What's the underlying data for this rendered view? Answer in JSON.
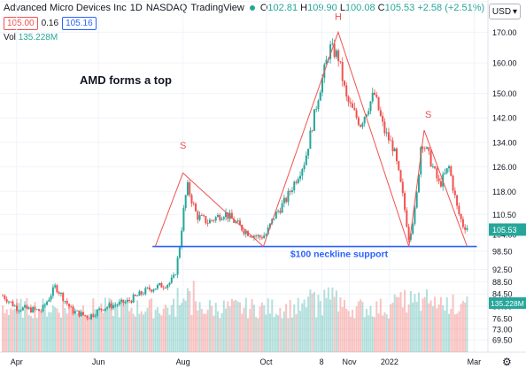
{
  "header": {
    "title": "Advanced Micro Devices Inc",
    "interval": "1D",
    "exchange": "NASDAQ",
    "source": "TradingView",
    "open_label": "O",
    "open": "102.81",
    "high_label": "H",
    "high": "109.90",
    "low_label": "L",
    "low": "100.08",
    "close_label": "C",
    "close": "105.53",
    "change": "+2.58 (+2.51%)",
    "bid": "105.00",
    "spread": "0.16",
    "ask": "105.16",
    "vol_label": "Vol",
    "vol": "135.228M",
    "currency": "USD"
  },
  "colors": {
    "up": "#26a69a",
    "down": "#ef5350",
    "annotation": "#ef5350",
    "neckline": "#2962ff"
  },
  "chart_data": {
    "type": "candlestick",
    "title": "AMD forms a top",
    "ylim": [
      65.5,
      180.5
    ],
    "y_ticks": [
      69.5,
      73.0,
      76.5,
      80.5,
      84.5,
      88.5,
      92.5,
      98.5,
      104.0,
      110.5,
      118.0,
      126.0,
      134.0,
      142.0,
      150.0,
      160.0,
      170.0,
      180.0
    ],
    "x_ticks": [
      {
        "label": "Apr",
        "day": 0
      },
      {
        "label": "Jun",
        "day": 59
      },
      {
        "label": "Aug",
        "day": 120
      },
      {
        "label": "Oct",
        "day": 180
      },
      {
        "label": "8",
        "day": 220
      },
      {
        "label": "Nov",
        "day": 240
      },
      {
        "label": "2022",
        "day": 269
      },
      {
        "label": "Mar",
        "day": 330
      }
    ],
    "last_price": "105.53",
    "last_volume": "135.228M",
    "path": [
      [
        -10,
        84
      ],
      [
        0,
        80
      ],
      [
        18,
        79
      ],
      [
        28,
        87
      ],
      [
        40,
        79
      ],
      [
        52,
        77
      ],
      [
        62,
        80
      ],
      [
        80,
        82
      ],
      [
        95,
        86
      ],
      [
        110,
        88
      ],
      [
        114,
        90
      ],
      [
        117,
        98
      ],
      [
        120,
        110
      ],
      [
        123,
        120
      ],
      [
        130,
        110
      ],
      [
        138,
        108
      ],
      [
        150,
        111
      ],
      [
        165,
        105
      ],
      [
        175,
        103
      ],
      [
        180,
        104
      ],
      [
        186,
        110
      ],
      [
        194,
        115
      ],
      [
        208,
        128
      ],
      [
        218,
        150
      ],
      [
        226,
        165
      ],
      [
        232,
        162
      ],
      [
        238,
        148
      ],
      [
        248,
        140
      ],
      [
        258,
        150
      ],
      [
        265,
        138
      ],
      [
        272,
        132
      ],
      [
        278,
        118
      ],
      [
        283,
        103
      ],
      [
        288,
        113
      ],
      [
        292,
        135
      ],
      [
        297,
        130
      ],
      [
        305,
        120
      ],
      [
        312,
        126
      ],
      [
        318,
        112
      ],
      [
        322,
        107
      ],
      [
        326,
        106
      ]
    ],
    "volume_range": [
      40,
      90
    ],
    "annotations": [
      {
        "label": "S",
        "at": [
          120,
          132
        ]
      },
      {
        "label": "H",
        "at": [
          232,
          174
        ]
      },
      {
        "label": "S",
        "at": [
          297,
          142
        ]
      },
      {
        "label": "AMD forms a top"
      },
      {
        "label": "$100 neckline support",
        "y": 100
      }
    ],
    "pattern_lines": [
      [
        [
          100,
          100
        ],
        [
          120,
          124
        ],
        [
          178,
          100
        ]
      ],
      [
        [
          178,
          100
        ],
        [
          232,
          170
        ],
        [
          283,
          100
        ]
      ],
      [
        [
          283,
          100
        ],
        [
          294,
          138
        ],
        [
          325,
          100
        ]
      ]
    ],
    "neckline": {
      "y": 100,
      "from_day": 98,
      "to_day": 332
    }
  }
}
